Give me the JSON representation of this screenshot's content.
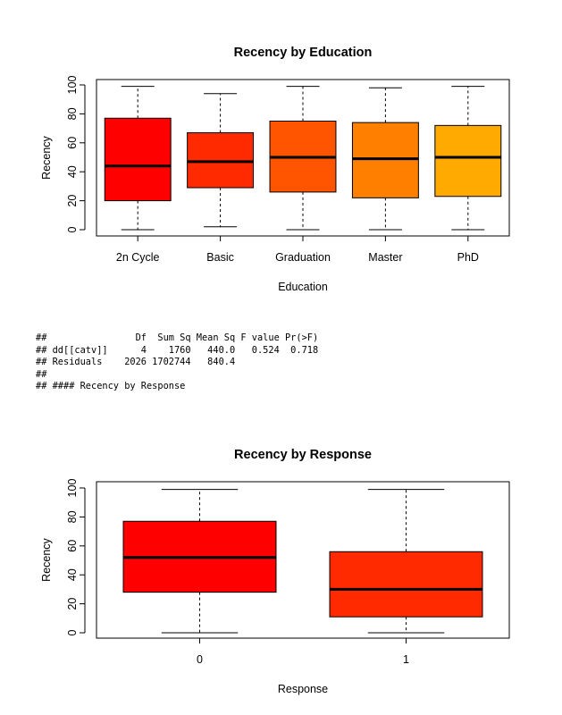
{
  "chart_data": [
    {
      "type": "box",
      "title": "Recency by Education",
      "xlabel": "Education",
      "ylabel": "Recency",
      "ylim": [
        0,
        100
      ],
      "yticks": [
        0,
        20,
        40,
        60,
        80,
        100
      ],
      "categories": [
        "2n Cycle",
        "Basic",
        "Graduation",
        "Master",
        "PhD"
      ],
      "boxes": [
        {
          "min": 0,
          "q1": 20,
          "median": 44,
          "q3": 77,
          "max": 99,
          "color": "#FF0000"
        },
        {
          "min": 2,
          "q1": 29,
          "median": 47,
          "q3": 67,
          "max": 94,
          "color": "#FF2A00"
        },
        {
          "min": 0,
          "q1": 26,
          "median": 50,
          "q3": 75,
          "max": 99,
          "color": "#FF5500"
        },
        {
          "min": 0,
          "q1": 22,
          "median": 49,
          "q3": 74,
          "max": 98,
          "color": "#FF7F00"
        },
        {
          "min": 0,
          "q1": 23,
          "median": 50,
          "q3": 72,
          "max": 99,
          "color": "#FFAA00"
        }
      ]
    },
    {
      "type": "box",
      "title": "Recency by Response",
      "xlabel": "Response",
      "ylabel": "Recency",
      "ylim": [
        0,
        100
      ],
      "yticks": [
        0,
        20,
        40,
        60,
        80,
        100
      ],
      "categories": [
        "0",
        "1"
      ],
      "boxes": [
        {
          "min": 0,
          "q1": 28,
          "median": 52,
          "q3": 77,
          "max": 99,
          "color": "#FF0000"
        },
        {
          "min": 0,
          "q1": 11,
          "median": 30,
          "q3": 56,
          "max": 99,
          "color": "#FF2A00"
        }
      ]
    }
  ],
  "console": {
    "lines": [
      "##                Df  Sum Sq Mean Sq F value Pr(>F)",
      "## dd[[catv]]      4    1760   440.0   0.524  0.718",
      "## Residuals    2026 1702744   840.4",
      "##",
      "## #### Recency by Response"
    ]
  }
}
